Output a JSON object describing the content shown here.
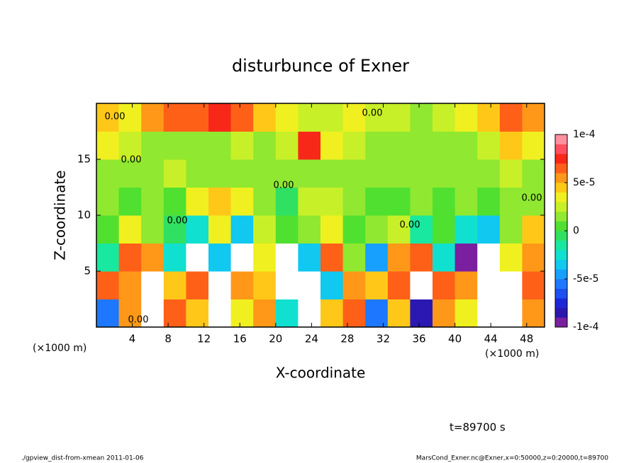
{
  "chart_data": {
    "type": "contourf",
    "title": "disturbunce of Exner",
    "xlabel": "X-coordinate",
    "ylabel": "Z-coordinate",
    "x_unit": "(×1000 m)",
    "x_unit2": "(×1000 m)",
    "time_label": "t=89700 s",
    "footer_left": "./gpview_dist-from-xmean  2011-01-06",
    "footer_right": "MarsCond_Exner.nc@Exner,x=0:50000,z=0:20000,t=89700",
    "contour_labels": [
      "0.00",
      "0.00",
      "0.00",
      "0.00",
      "0.00",
      "0.00",
      "0.00",
      "0.00"
    ],
    "xlim": [
      0,
      50
    ],
    "ylim": [
      0,
      20
    ],
    "xticks": [
      4,
      8,
      12,
      16,
      20,
      24,
      28,
      32,
      36,
      40,
      44,
      48
    ],
    "yticks": [
      5,
      10,
      15
    ],
    "x": [
      1.25,
      3.75,
      6.25,
      8.75,
      11.25,
      13.75,
      16.25,
      18.75,
      21.25,
      23.75,
      26.25,
      28.75,
      31.25,
      33.75,
      36.25,
      38.75,
      41.25,
      43.75,
      46.25,
      48.75
    ],
    "y": [
      1.25,
      3.75,
      6.25,
      8.75,
      11.25,
      13.75,
      16.25,
      18.75
    ],
    "z": [
      [
        -6e-05,
        5e-05,
        -0.00012,
        6e-05,
        4e-05,
        -0.00013,
        3e-05,
        5e-05,
        -3e-05,
        -0.00012,
        4e-05,
        6e-05,
        -6e-05,
        4e-05,
        -9e-05,
        5e-05,
        3e-05,
        -0.00012,
        -0.00012,
        5e-05
      ],
      [
        6e-05,
        5e-05,
        -0.00012,
        4e-05,
        6e-05,
        -0.00012,
        5e-05,
        4e-05,
        -0.00012,
        -0.00012,
        -4e-05,
        5e-05,
        4e-05,
        6e-05,
        -0.00012,
        6e-05,
        5e-05,
        -0.00012,
        -0.00012,
        6e-05
      ],
      [
        -2e-05,
        6e-05,
        5e-05,
        -3e-05,
        -0.00012,
        -4e-05,
        -0.00011,
        3e-05,
        -0.00011,
        -4e-05,
        6e-05,
        1e-05,
        -5e-05,
        5e-05,
        6e-05,
        -3e-05,
        -0.0001,
        -0.00012,
        3e-05,
        5e-05
      ],
      [
        0,
        3e-05,
        1e-05,
        -1e-05,
        -3e-05,
        3e-05,
        -4e-05,
        2e-05,
        0,
        1e-05,
        3e-05,
        0,
        1e-05,
        2e-05,
        -2e-05,
        0,
        -3e-05,
        -4e-05,
        1e-05,
        4e-05
      ],
      [
        1e-05,
        0,
        1e-05,
        0,
        3e-05,
        4e-05,
        3e-05,
        1e-05,
        -1e-05,
        2e-05,
        2e-05,
        1e-05,
        0,
        0,
        1e-05,
        0,
        1e-05,
        0,
        1e-05,
        1e-05
      ],
      [
        1e-05,
        1e-05,
        1e-05,
        2e-05,
        1e-05,
        1e-05,
        1e-05,
        1e-05,
        1e-05,
        1e-05,
        1e-05,
        1e-05,
        1e-05,
        1e-05,
        1e-05,
        1e-05,
        1e-05,
        1e-05,
        2e-05,
        1e-05
      ],
      [
        3e-05,
        2e-05,
        1e-05,
        1e-05,
        1e-05,
        1e-05,
        2e-05,
        1e-05,
        2e-05,
        7e-05,
        3e-05,
        2e-05,
        1e-05,
        1e-05,
        1e-05,
        1e-05,
        1e-05,
        2e-05,
        4e-05,
        3e-05
      ],
      [
        4e-05,
        3e-05,
        5e-05,
        6e-05,
        6e-05,
        7e-05,
        6e-05,
        4e-05,
        3e-05,
        2e-05,
        2e-05,
        3e-05,
        2e-05,
        2e-05,
        1e-05,
        2e-05,
        3e-05,
        4e-05,
        6e-05,
        5e-05
      ]
    ],
    "clim": [
      -0.0001,
      0.0001
    ],
    "cticks": [
      {
        "value": 0.0001,
        "label": "1e-4"
      },
      {
        "value": 5e-05,
        "label": "5e-5"
      },
      0,
      {
        "value": -5e-05,
        "label": "-5e-5"
      },
      {
        "value": -0.0001,
        "label": "-1e-4"
      }
    ],
    "colormap": [
      "#7a1fa0",
      "#2a18b0",
      "#1c28d8",
      "#1d50f0",
      "#1e78ff",
      "#18a0ff",
      "#10c8f0",
      "#10e0d0",
      "#18e8a0",
      "#30e060",
      "#50e030",
      "#90e830",
      "#c8f028",
      "#f0f020",
      "#ffc818",
      "#ff9818",
      "#ff6018",
      "#f82818",
      "#ff5060",
      "#ff90a0"
    ],
    "out_of_range_color": "#ffffff"
  }
}
